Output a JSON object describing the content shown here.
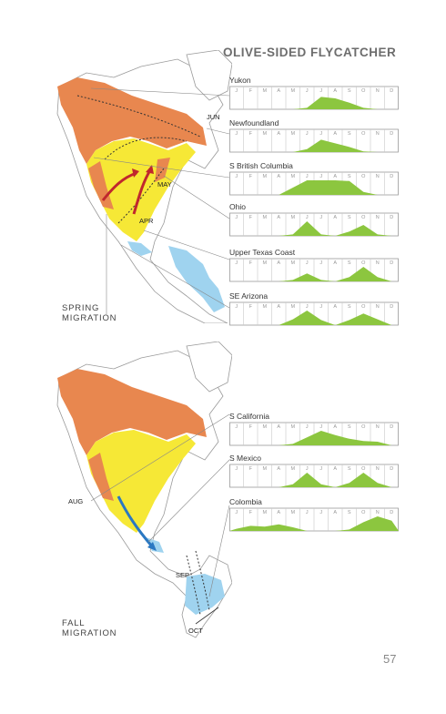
{
  "title": "OLIVE-SIDED FLYCATCHER",
  "months": [
    "J",
    "F",
    "M",
    "A",
    "M",
    "J",
    "J",
    "A",
    "S",
    "O",
    "N",
    "D"
  ],
  "spring": {
    "heading_lines": [
      "SPRING",
      "MIGRATION"
    ],
    "map_labels": {
      "jun": "JUN",
      "may": "MAY",
      "apr": "APR"
    },
    "charts": [
      {
        "label": "Yukon",
        "values": [
          0,
          0,
          0,
          0,
          0,
          0.1,
          0.85,
          0.75,
          0.45,
          0.1,
          0,
          0
        ]
      },
      {
        "label": "Newfoundland",
        "values": [
          0,
          0,
          0,
          0,
          0,
          0.2,
          0.85,
          0.6,
          0.35,
          0.05,
          0,
          0
        ]
      },
      {
        "label": "S British Columbia",
        "values": [
          0,
          0,
          0,
          0,
          0.5,
          1,
          1,
          1,
          0.95,
          0.2,
          0,
          0
        ]
      },
      {
        "label": "Ohio",
        "values": [
          0,
          0,
          0,
          0,
          0.1,
          1,
          0.1,
          0,
          0.3,
          0.75,
          0.1,
          0
        ]
      },
      {
        "label": "Upper Texas Coast",
        "values": [
          0,
          0,
          0,
          0,
          0.1,
          0.55,
          0.1,
          0,
          0.3,
          1,
          0.3,
          0
        ]
      },
      {
        "label": "SE Arizona",
        "values": [
          0,
          0,
          0,
          0,
          0.4,
          1,
          0.35,
          0,
          0.35,
          0.8,
          0.4,
          0
        ]
      }
    ]
  },
  "fall": {
    "heading_lines": [
      "FALL",
      "MIGRATION"
    ],
    "map_labels": {
      "aug": "AUG",
      "sep": "SEP",
      "oct": "OCT"
    },
    "charts": [
      {
        "label": "S California",
        "values": [
          0,
          0,
          0,
          0,
          0.1,
          0.55,
          1,
          0.7,
          0.45,
          0.3,
          0.25,
          0
        ]
      },
      {
        "label": "S Mexico",
        "values": [
          0,
          0,
          0,
          0,
          0.2,
          1,
          0.2,
          0,
          0.3,
          1,
          0.3,
          0
        ]
      },
      {
        "label": "Colombia",
        "values": [
          0.15,
          0.35,
          0.3,
          0.45,
          0.25,
          0,
          0,
          0,
          0.1,
          0.6,
          1,
          0.7
        ]
      }
    ]
  },
  "page_number": "57",
  "colors": {
    "breeding": "#e8874f",
    "migration": "#f6e836",
    "winter": "#9fd3ef",
    "chart_fill": "#8cc63f",
    "arrow_spring": "#c0272d",
    "arrow_fall": "#2a78c2"
  }
}
